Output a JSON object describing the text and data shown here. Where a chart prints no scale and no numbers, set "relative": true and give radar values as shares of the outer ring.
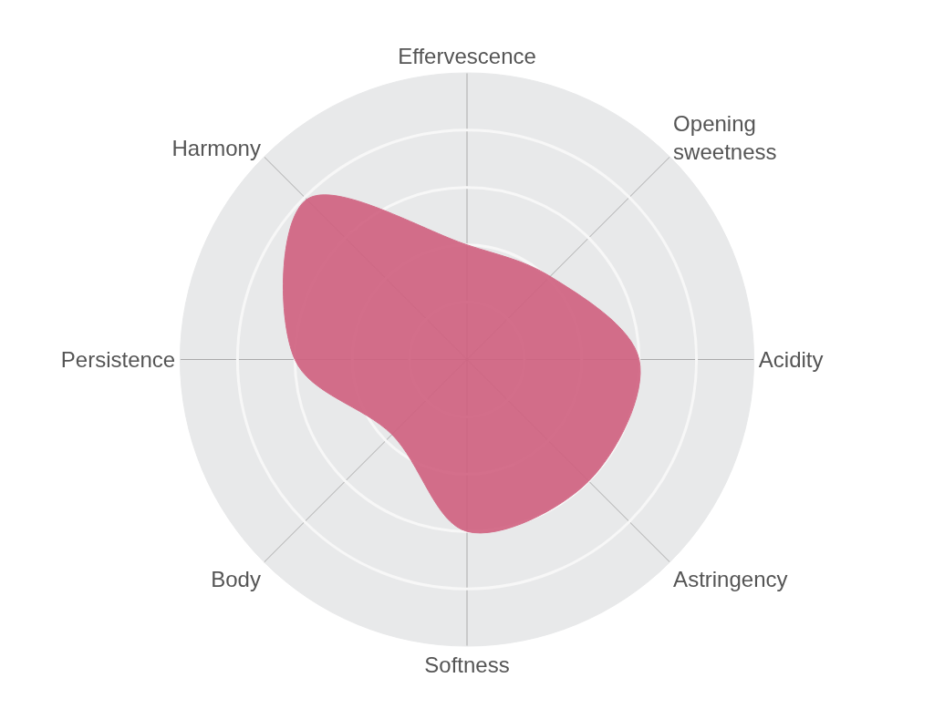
{
  "chart_data": {
    "type": "radar",
    "relative": true,
    "grid": true,
    "categories": [
      "Effervescence",
      "Opening\nsweetness",
      "Acidity",
      "Astringency",
      "Softness",
      "Body",
      "Persistence",
      "Harmony"
    ],
    "series": [
      {
        "color": "#d0607f",
        "values": [
          0.4,
          0.41,
          0.6,
          0.6,
          0.6,
          0.37,
          0.6,
          0.79
        ]
      }
    ]
  }
}
